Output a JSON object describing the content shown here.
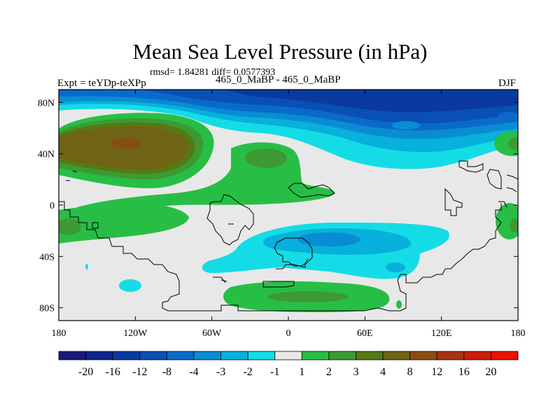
{
  "chart_data": {
    "type": "contour_map",
    "title": "Mean Sea Level Pressure (in hPa)",
    "stats_text": "rmsd= 1.84281  diff= 0.0577393",
    "experiment_label": "Expt = teYDp-teXPp",
    "case_label": "465_0_MaBP - 465_0_MaBP",
    "season": "DJF",
    "x_ticks": [
      "180",
      "120W",
      "60W",
      "0",
      "60E",
      "120E",
      "180"
    ],
    "x_tick_values": [
      -180,
      -120,
      -60,
      0,
      60,
      120,
      180
    ],
    "y_ticks": [
      "80N",
      "40N",
      "0",
      "40S",
      "80S"
    ],
    "y_tick_values": [
      80,
      40,
      0,
      -40,
      -80
    ],
    "xlim": [
      -180,
      180
    ],
    "ylim": [
      -90,
      90
    ],
    "colorbar": {
      "levels": [
        "-20",
        "-16",
        "-12",
        "-8",
        "-4",
        "-3",
        "-2",
        "-1",
        "1",
        "2",
        "3",
        "4",
        "8",
        "12",
        "16",
        "20"
      ],
      "colors": [
        "#1a1a7a",
        "#10228c",
        "#0a3aa0",
        "#0a50b4",
        "#0a6ac8",
        "#0a8cd2",
        "#08b0dc",
        "#14dce6",
        "#e8e8e8",
        "#28be46",
        "#3c9a32",
        "#557a14",
        "#6e6414",
        "#8c4a14",
        "#a83214",
        "#c81e0a",
        "#e61400"
      ]
    }
  }
}
